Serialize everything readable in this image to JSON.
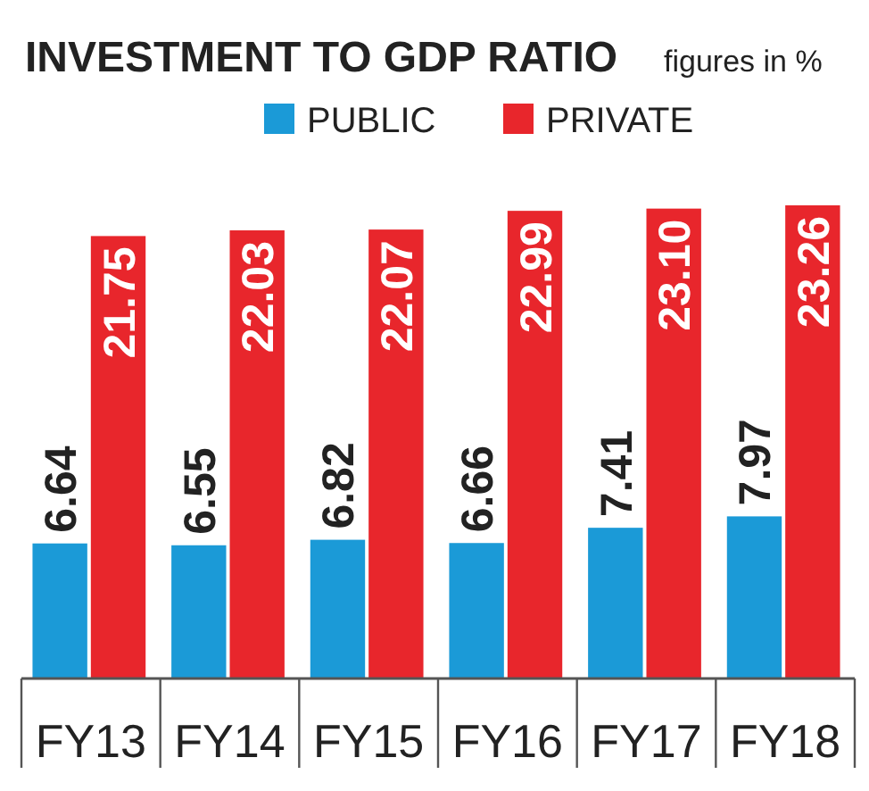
{
  "chart_data": {
    "type": "bar",
    "title": "INVESTMENT TO GDP RATIO",
    "subtitle": "figures in %",
    "categories": [
      "FY13",
      "FY14",
      "FY15",
      "FY16",
      "FY17",
      "FY18"
    ],
    "legend": "top",
    "series": [
      {
        "name": "PUBLIC",
        "color": "#1b9ad7",
        "values": [
          6.64,
          6.55,
          6.82,
          6.66,
          7.41,
          7.97
        ],
        "value_labels": [
          "6.64",
          "6.55",
          "6.82",
          "6.66",
          "7.41",
          "7.97"
        ]
      },
      {
        "name": "PRIVATE",
        "color": "#e8262c",
        "values": [
          21.75,
          22.03,
          22.07,
          22.99,
          23.1,
          23.26
        ],
        "value_labels": [
          "21.75",
          "22.03",
          "22.07",
          "22.99",
          "23.10",
          "23.26"
        ]
      }
    ]
  }
}
